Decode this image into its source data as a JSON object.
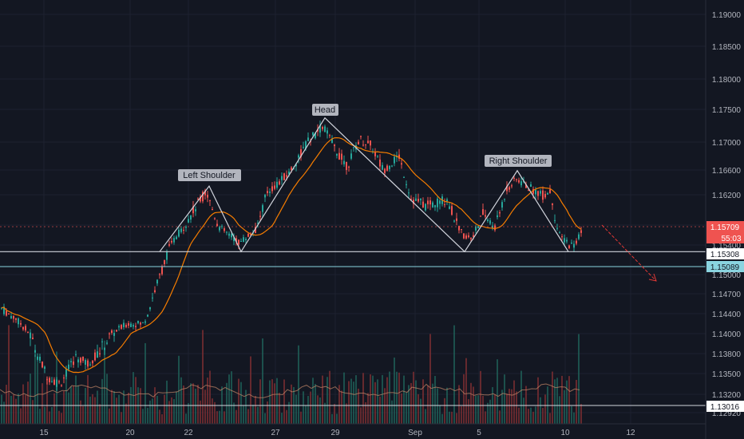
{
  "chart_data": {
    "type": "candlestick",
    "y_ticks": [
      "1.19000",
      "1.18500",
      "1.18000",
      "1.17500",
      "1.17000",
      "1.16600",
      "1.16200",
      "1.15800",
      "1.15400",
      "1.15000",
      "1.14700",
      "1.14400",
      "1.14000",
      "1.13800",
      "1.13500",
      "1.13200",
      "1.12920"
    ],
    "ylim": [
      1.129,
      1.193
    ],
    "x_ticks": [
      "15",
      "20",
      "22",
      "27",
      "29",
      "Sep",
      "5",
      "10",
      "12"
    ],
    "annotations": {
      "left_shoulder": "Left Shoulder",
      "head": "Head",
      "right_shoulder": "Right Shoulder"
    },
    "price_badges": {
      "last_price": "1.15709",
      "countdown": "55:03",
      "neckline": "1.15308",
      "lower_level": "1.15089",
      "bottom_level": "1.13016"
    },
    "pattern_points": [
      {
        "x": "Aug 20",
        "y": 1.1531
      },
      {
        "x": "Aug 22",
        "y": 1.1634
      },
      {
        "x": "Aug 24",
        "y": 1.1531
      },
      {
        "x": "Aug 28",
        "y": 1.1737
      },
      {
        "x": "Sep 4",
        "y": 1.1531
      },
      {
        "x": "Sep 7",
        "y": 1.1659
      },
      {
        "x": "Sep 10",
        "y": 1.1531
      }
    ],
    "neckline_value": 1.1531,
    "projection": {
      "from": 1.158,
      "to": 1.149
    },
    "colors": {
      "background": "#131722",
      "up": "#26a69a",
      "down": "#ef5350",
      "ma": "#f57c00",
      "pattern": "#d1d4dc",
      "projection": "#e53935",
      "grid": "#1e2230"
    }
  }
}
